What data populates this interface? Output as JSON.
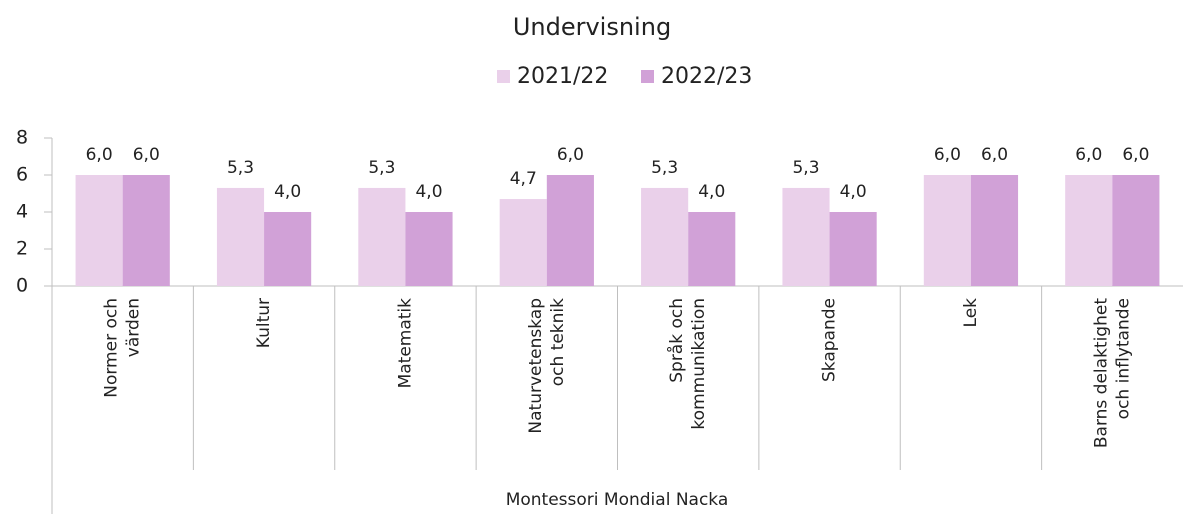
{
  "chart_data": {
    "type": "bar",
    "title": "Undervisning",
    "x_label": "Montessori Mondial Nacka",
    "categories": [
      "Normer och\nvärden",
      "Kultur",
      "Matematik",
      "Naturvetenskap\noch teknik",
      "Språk och\nkommunikation",
      "Skapande",
      "Lek",
      "Barns delaktighet\noch inflytande"
    ],
    "series": [
      {
        "name": "2021/22",
        "color": "#ead0ea",
        "values": [
          6.0,
          5.3,
          5.3,
          4.7,
          5.3,
          5.3,
          6.0,
          6.0
        ],
        "value_labels": [
          "6,0",
          "5,3",
          "5,3",
          "4,7",
          "5,3",
          "5,3",
          "6,0",
          "6,0"
        ]
      },
      {
        "name": "2022/23",
        "color": "#d1a1d7",
        "values": [
          6.0,
          4.0,
          4.0,
          6.0,
          4.0,
          4.0,
          6.0,
          6.0
        ],
        "value_labels": [
          "6,0",
          "4,0",
          "4,0",
          "6,0",
          "4,0",
          "4,0",
          "6,0",
          "6,0"
        ]
      }
    ],
    "ylim": [
      0,
      8
    ],
    "yticks": [
      0,
      2,
      4,
      6,
      8
    ],
    "legend": "top"
  }
}
